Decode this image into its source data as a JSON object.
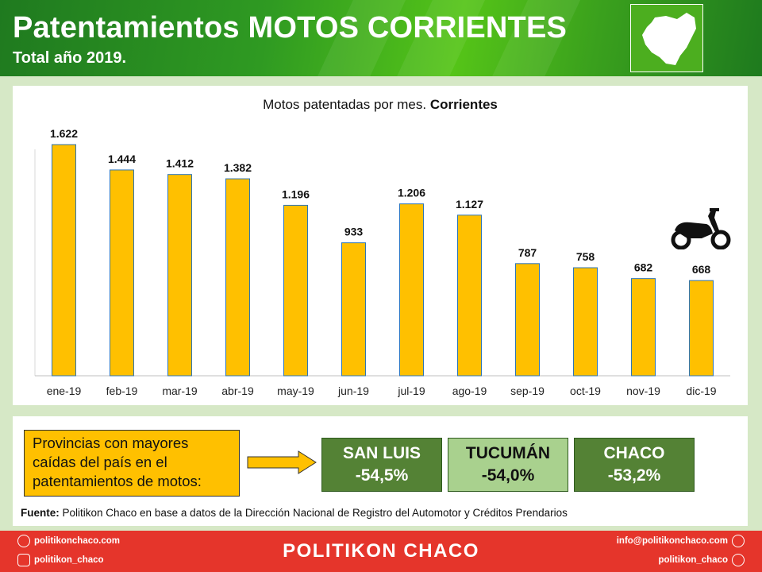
{
  "header": {
    "title": "Patentamientos MOTOS CORRIENTES",
    "subtitle": "Total año 2019."
  },
  "chart_data": {
    "type": "bar",
    "title_prefix": "Motos patentadas por mes.",
    "title_bold": "Corrientes",
    "categories": [
      "ene-19",
      "feb-19",
      "mar-19",
      "abr-19",
      "may-19",
      "jun-19",
      "jul-19",
      "ago-19",
      "sep-19",
      "oct-19",
      "nov-19",
      "dic-19"
    ],
    "values": [
      1622,
      1444,
      1412,
      1382,
      1196,
      933,
      1206,
      1127,
      787,
      758,
      682,
      668
    ],
    "data_labels": [
      "1.622",
      "1.444",
      "1.412",
      "1.382",
      "1.196",
      "933",
      "1.206",
      "1.127",
      "787",
      "758",
      "682",
      "668"
    ],
    "ylim": [
      0,
      1700
    ],
    "bar_color": "#ffc000",
    "bar_edge_color": "#2e75b6",
    "grid": false,
    "legend": "none"
  },
  "provinces": {
    "lines": [
      "Provincias con mayores",
      "caídas del país en el",
      "patentamientos  de motos:"
    ],
    "stats": [
      {
        "name": "SAN LUIS",
        "value": "-54,5%",
        "style": "dark"
      },
      {
        "name": "TUCUMÁN",
        "value": "-54,0%",
        "style": "light"
      },
      {
        "name": "CHACO",
        "value": "-53,2%",
        "style": "dark"
      }
    ]
  },
  "source": {
    "label": "Fuente:",
    "text": " Politikon Chaco en base a datos de la Dirección Nacional de Registro del Automotor  y Créditos Prendarios"
  },
  "footer": {
    "web": "politikonchaco.com",
    "instagram": "politikon_chaco",
    "brand": "POLITIKON CHACO",
    "email": "info@politikonchaco.com",
    "twitter": "politikon_chaco"
  },
  "icons": {
    "map": "corrientes-map-icon",
    "moto": "scooter-icon",
    "web": "globe-icon",
    "instagram": "instagram-icon",
    "email": "email-icon",
    "twitter": "twitter-icon"
  },
  "colors": {
    "header_green": "#2f9a22",
    "footer_red": "#e5352b",
    "stat_dark": "#548235",
    "stat_light": "#a9d18e",
    "highlight": "#ffc000"
  }
}
